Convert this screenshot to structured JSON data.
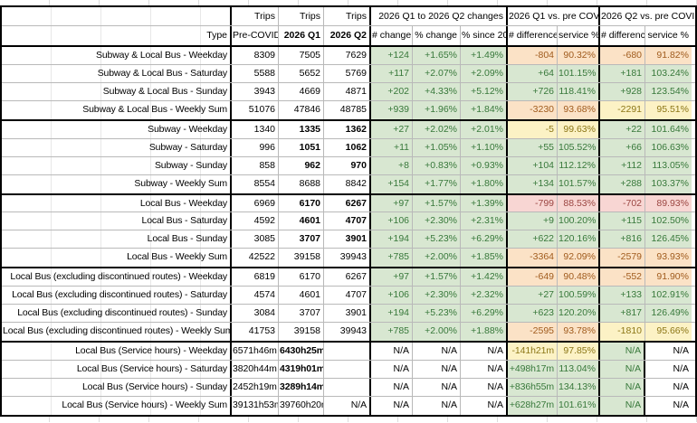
{
  "header": {
    "trips_label": "Trips",
    "type_label": "Type",
    "groups": [
      {
        "label": "2026 Q1 to 2026 Q2 changes"
      },
      {
        "label": "2026 Q1 vs. pre COVID"
      },
      {
        "label": "2026 Q2 vs. pre COVID"
      }
    ],
    "cols": [
      "Pre-COVID",
      "2026 Q1",
      "2026 Q2",
      "# change",
      "% change",
      "% since 2020",
      "# difference",
      "service %",
      "# difference",
      "service %"
    ]
  },
  "colors": {
    "positive_bg": "#d8e7d1",
    "positive_text": "#37783a",
    "below_service_bg": "#fbe2c6",
    "below_service_text": "#a05b1d",
    "near_parity_bg": "#fcf2c5",
    "near_parity_text": "#8c7616",
    "negative_bg": "#f8d6d3",
    "negative_text": "#9b4642",
    "grid_line": "#b9b9b9",
    "section_border": "#000000"
  },
  "sections": [
    {
      "rows": [
        {
          "label": "Subway & Local Bus - Weekday",
          "cells": [
            [
              "8309",
              ""
            ],
            [
              "7505",
              ""
            ],
            [
              "7629",
              ""
            ],
            [
              "+124",
              "g"
            ],
            [
              "+1.65%",
              "g"
            ],
            [
              "+1.49%",
              "g"
            ],
            [
              "-804",
              "o"
            ],
            [
              "90.32%",
              "o"
            ],
            [
              "-680",
              "o"
            ],
            [
              "91.82%",
              "o"
            ]
          ]
        },
        {
          "label": "Subway & Local Bus - Saturday",
          "cells": [
            [
              "5588",
              ""
            ],
            [
              "5652",
              ""
            ],
            [
              "5769",
              ""
            ],
            [
              "+117",
              "g"
            ],
            [
              "+2.07%",
              "g"
            ],
            [
              "+2.09%",
              "g"
            ],
            [
              "+64",
              "g"
            ],
            [
              "101.15%",
              "g"
            ],
            [
              "+181",
              "g"
            ],
            [
              "103.24%",
              "g"
            ]
          ]
        },
        {
          "label": "Subway & Local Bus - Sunday",
          "cells": [
            [
              "3943",
              ""
            ],
            [
              "4669",
              ""
            ],
            [
              "4871",
              ""
            ],
            [
              "+202",
              "g"
            ],
            [
              "+4.33%",
              "g"
            ],
            [
              "+5.12%",
              "g"
            ],
            [
              "+726",
              "g"
            ],
            [
              "118.41%",
              "g"
            ],
            [
              "+928",
              "g"
            ],
            [
              "123.54%",
              "g"
            ]
          ]
        },
        {
          "label": "Subway & Local Bus - Weekly Sum",
          "cells": [
            [
              "51076",
              ""
            ],
            [
              "47846",
              ""
            ],
            [
              "48785",
              ""
            ],
            [
              "+939",
              "g"
            ],
            [
              "+1.96%",
              "g"
            ],
            [
              "+1.84%",
              "g"
            ],
            [
              "-3230",
              "o"
            ],
            [
              "93.68%",
              "o"
            ],
            [
              "-2291",
              "y"
            ],
            [
              "95.51%",
              "y"
            ]
          ]
        }
      ]
    },
    {
      "rows": [
        {
          "label": "Subway - Weekday",
          "cells": [
            [
              "1340",
              ""
            ],
            [
              "1335",
              "b"
            ],
            [
              "1362",
              "b"
            ],
            [
              "+27",
              "g"
            ],
            [
              "+2.02%",
              "g"
            ],
            [
              "+2.01%",
              "g"
            ],
            [
              "-5",
              "y"
            ],
            [
              "99.63%",
              "y"
            ],
            [
              "+22",
              "g"
            ],
            [
              "101.64%",
              "g"
            ]
          ]
        },
        {
          "label": "Subway - Saturday",
          "cells": [
            [
              "996",
              ""
            ],
            [
              "1051",
              "b"
            ],
            [
              "1062",
              "b"
            ],
            [
              "+11",
              "g"
            ],
            [
              "+1.05%",
              "g"
            ],
            [
              "+1.10%",
              "g"
            ],
            [
              "+55",
              "g"
            ],
            [
              "105.52%",
              "g"
            ],
            [
              "+66",
              "g"
            ],
            [
              "106.63%",
              "g"
            ]
          ]
        },
        {
          "label": "Subway - Sunday",
          "cells": [
            [
              "858",
              ""
            ],
            [
              "962",
              "b"
            ],
            [
              "970",
              "b"
            ],
            [
              "+8",
              "g"
            ],
            [
              "+0.83%",
              "g"
            ],
            [
              "+0.93%",
              "g"
            ],
            [
              "+104",
              "g"
            ],
            [
              "112.12%",
              "g"
            ],
            [
              "+112",
              "g"
            ],
            [
              "113.05%",
              "g"
            ]
          ]
        },
        {
          "label": "Subway - Weekly Sum",
          "cells": [
            [
              "8554",
              ""
            ],
            [
              "8688",
              ""
            ],
            [
              "8842",
              ""
            ],
            [
              "+154",
              "g"
            ],
            [
              "+1.77%",
              "g"
            ],
            [
              "+1.80%",
              "g"
            ],
            [
              "+134",
              "g"
            ],
            [
              "101.57%",
              "g"
            ],
            [
              "+288",
              "g"
            ],
            [
              "103.37%",
              "g"
            ]
          ]
        }
      ]
    },
    {
      "rows": [
        {
          "label": "Local Bus - Weekday",
          "cells": [
            [
              "6969",
              ""
            ],
            [
              "6170",
              "b"
            ],
            [
              "6267",
              "b"
            ],
            [
              "+97",
              "g"
            ],
            [
              "+1.57%",
              "g"
            ],
            [
              "+1.39%",
              "g"
            ],
            [
              "-799",
              "p"
            ],
            [
              "88.53%",
              "p"
            ],
            [
              "-702",
              "p"
            ],
            [
              "89.93%",
              "p"
            ]
          ]
        },
        {
          "label": "Local Bus - Saturday",
          "cells": [
            [
              "4592",
              ""
            ],
            [
              "4601",
              "b"
            ],
            [
              "4707",
              "b"
            ],
            [
              "+106",
              "g"
            ],
            [
              "+2.30%",
              "g"
            ],
            [
              "+2.31%",
              "g"
            ],
            [
              "+9",
              "g"
            ],
            [
              "100.20%",
              "g"
            ],
            [
              "+115",
              "g"
            ],
            [
              "102.50%",
              "g"
            ]
          ]
        },
        {
          "label": "Local Bus - Sunday",
          "cells": [
            [
              "3085",
              ""
            ],
            [
              "3707",
              "b"
            ],
            [
              "3901",
              "b"
            ],
            [
              "+194",
              "g"
            ],
            [
              "+5.23%",
              "g"
            ],
            [
              "+6.29%",
              "g"
            ],
            [
              "+622",
              "g"
            ],
            [
              "120.16%",
              "g"
            ],
            [
              "+816",
              "g"
            ],
            [
              "126.45%",
              "g"
            ]
          ]
        },
        {
          "label": "Local Bus - Weekly Sum",
          "cells": [
            [
              "42522",
              ""
            ],
            [
              "39158",
              ""
            ],
            [
              "39943",
              ""
            ],
            [
              "+785",
              "g"
            ],
            [
              "+2.00%",
              "g"
            ],
            [
              "+1.85%",
              "g"
            ],
            [
              "-3364",
              "o"
            ],
            [
              "92.09%",
              "o"
            ],
            [
              "-2579",
              "o"
            ],
            [
              "93.93%",
              "o"
            ]
          ]
        }
      ]
    },
    {
      "rows": [
        {
          "label": "Local Bus (excluding discontinued routes) - Weekday",
          "cells": [
            [
              "6819",
              ""
            ],
            [
              "6170",
              ""
            ],
            [
              "6267",
              ""
            ],
            [
              "+97",
              "g"
            ],
            [
              "+1.57%",
              "g"
            ],
            [
              "+1.42%",
              "g"
            ],
            [
              "-649",
              "o"
            ],
            [
              "90.48%",
              "o"
            ],
            [
              "-552",
              "o"
            ],
            [
              "91.90%",
              "o"
            ]
          ]
        },
        {
          "label": "Local Bus (excluding discontinued routes) - Saturday",
          "cells": [
            [
              "4574",
              ""
            ],
            [
              "4601",
              ""
            ],
            [
              "4707",
              ""
            ],
            [
              "+106",
              "g"
            ],
            [
              "+2.30%",
              "g"
            ],
            [
              "+2.32%",
              "g"
            ],
            [
              "+27",
              "g"
            ],
            [
              "100.59%",
              "g"
            ],
            [
              "+133",
              "g"
            ],
            [
              "102.91%",
              "g"
            ]
          ]
        },
        {
          "label": "Local Bus (excluding discontinued routes) - Sunday",
          "cells": [
            [
              "3084",
              ""
            ],
            [
              "3707",
              ""
            ],
            [
              "3901",
              ""
            ],
            [
              "+194",
              "g"
            ],
            [
              "+5.23%",
              "g"
            ],
            [
              "+6.29%",
              "g"
            ],
            [
              "+623",
              "g"
            ],
            [
              "120.20%",
              "g"
            ],
            [
              "+817",
              "g"
            ],
            [
              "126.49%",
              "g"
            ]
          ]
        },
        {
          "label": "Local Bus (excluding discontinued routes) - Weekly Sum",
          "cells": [
            [
              "41753",
              ""
            ],
            [
              "39158",
              ""
            ],
            [
              "39943",
              ""
            ],
            [
              "+785",
              "g"
            ],
            [
              "+2.00%",
              "g"
            ],
            [
              "+1.88%",
              "g"
            ],
            [
              "-2595",
              "o"
            ],
            [
              "93.78%",
              "o"
            ],
            [
              "-1810",
              "y"
            ],
            [
              "95.66%",
              "y"
            ]
          ]
        }
      ]
    },
    {
      "svc": true,
      "rows": [
        {
          "label": "Local Bus (Service hours) - Weekday",
          "cells": [
            [
              "6571h46m",
              "sl"
            ],
            [
              "6430h25m",
              "sbl"
            ],
            [
              "",
              ""
            ],
            [
              "N/A",
              ""
            ],
            [
              "N/A",
              ""
            ],
            [
              "N/A",
              ""
            ],
            [
              "-141h21m",
              "ys"
            ],
            [
              "97.85%",
              "y"
            ],
            [
              "N/A",
              "gsl"
            ],
            [
              "N/A",
              "l"
            ]
          ]
        },
        {
          "label": "Local Bus (Service hours) - Saturday",
          "cells": [
            [
              "3820h44m",
              "sl"
            ],
            [
              "4319h01m",
              "sbl"
            ],
            [
              "",
              ""
            ],
            [
              "N/A",
              ""
            ],
            [
              "N/A",
              ""
            ],
            [
              "N/A",
              ""
            ],
            [
              "+498h17m",
              "gs"
            ],
            [
              "113.04%",
              "g"
            ],
            [
              "N/A",
              "gsl"
            ],
            [
              "N/A",
              "l"
            ]
          ]
        },
        {
          "label": "Local Bus (Service hours) - Sunday",
          "cells": [
            [
              "2452h19m",
              "sl"
            ],
            [
              "3289h14m",
              "sbl"
            ],
            [
              "",
              ""
            ],
            [
              "N/A",
              ""
            ],
            [
              "N/A",
              ""
            ],
            [
              "N/A",
              ""
            ],
            [
              "+836h55m",
              "gs"
            ],
            [
              "134.13%",
              "g"
            ],
            [
              "N/A",
              "gsl"
            ],
            [
              "N/A",
              "l"
            ]
          ]
        },
        {
          "label": "Local Bus (Service hours) - Weekly Sum",
          "cells": [
            [
              "39131h53m",
              "sl"
            ],
            [
              "39760h20m",
              "sl"
            ],
            [
              "N/A",
              "s"
            ],
            [
              "N/A",
              ""
            ],
            [
              "N/A",
              ""
            ],
            [
              "N/A",
              ""
            ],
            [
              "+628h27m",
              "gs"
            ],
            [
              "101.61%",
              "g"
            ],
            [
              "N/A",
              "gsl"
            ],
            [
              "N/A",
              "l"
            ]
          ]
        }
      ]
    }
  ]
}
